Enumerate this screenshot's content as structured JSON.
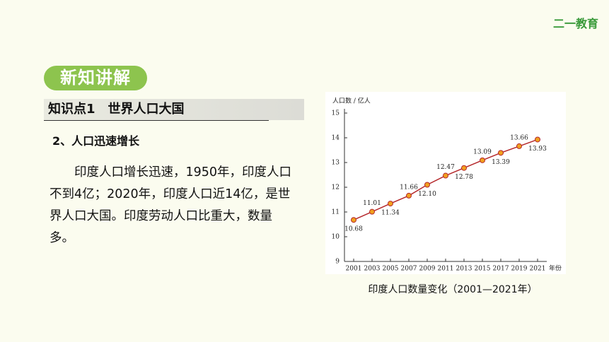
{
  "logo": "二一教育",
  "badge": "新知讲解",
  "section": "知识点1　世界人口大国",
  "subsection": "2、人口迅速增长",
  "paragraph": "印度人口增长迅速，1950年，印度人口不到4亿；2020年，印度人口近14亿，是世界人口大国。印度劳动人口比重大，数量多。",
  "chart_data": {
    "type": "line",
    "title": "印度人口数量变化（2001—2021年）",
    "ylabel": "人口数 / 亿人",
    "xlabel": "年份",
    "x": [
      2001,
      2003,
      2005,
      2007,
      2009,
      2011,
      2013,
      2015,
      2017,
      2019,
      2021
    ],
    "values": [
      10.68,
      11.01,
      11.34,
      11.66,
      12.1,
      12.47,
      12.78,
      13.09,
      13.39,
      13.66,
      13.93
    ],
    "value_labels": [
      "10.68",
      "11.01",
      "11.34",
      "11.66",
      "12.10",
      "12.47",
      "12.78",
      "13.09",
      "13.39",
      "13.66",
      "13.93"
    ],
    "color": "#b5282c",
    "marker_color": "#f0a01e",
    "xlim": [
      2000,
      2022
    ],
    "xticks": [
      2001,
      2003,
      2005,
      2007,
      2009,
      2011,
      2013,
      2015,
      2017,
      2019,
      2021
    ],
    "ylim": [
      9,
      15
    ],
    "yticks": [
      9,
      10,
      11,
      12,
      13,
      14,
      15
    ],
    "grid": false
  }
}
